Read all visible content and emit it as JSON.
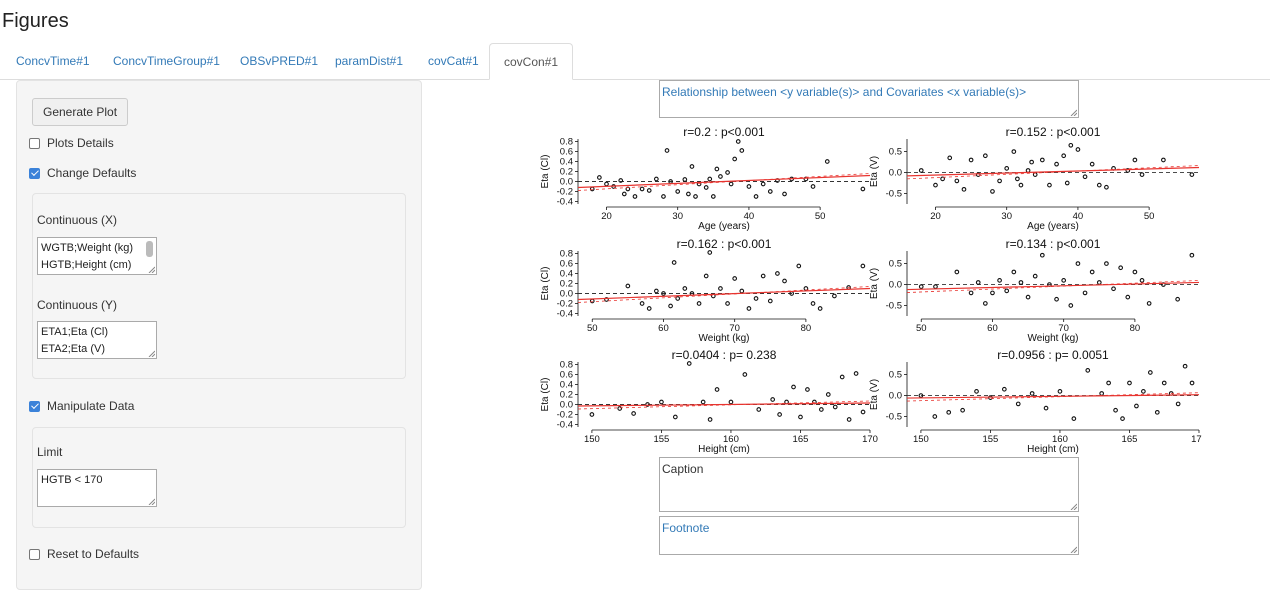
{
  "page": {
    "title": "Figures"
  },
  "tabs": [
    {
      "label": "ConcvTime#1"
    },
    {
      "label": "ConcvTimeGroup#1"
    },
    {
      "label": "OBSvPRED#1"
    },
    {
      "label": "paramDist#1"
    },
    {
      "label": "covCat#1"
    },
    {
      "label": "covCon#1"
    }
  ],
  "active_tab": "covCon#1",
  "sidebar": {
    "generate_label": "Generate Plot",
    "plots_details": {
      "label": "Plots Details",
      "checked": false
    },
    "change_defaults": {
      "label": "Change Defaults",
      "checked": true
    },
    "continuous_x": {
      "label": "Continuous (X)",
      "lines": [
        "WGTB;Weight (kg)",
        "HGTB;Height (cm)"
      ]
    },
    "continuous_y": {
      "label": "Continuous (Y)",
      "lines": [
        "ETA1;Eta (Cl)",
        "ETA2;Eta (V)"
      ]
    },
    "manipulate_data": {
      "label": "Manipulate Data",
      "checked": true
    },
    "limit": {
      "label": "Limit",
      "value": "HGTB < 170"
    },
    "reset_defaults": {
      "label": "Reset to Defaults",
      "checked": false
    }
  },
  "main": {
    "title_text": "Relationship between <y variable(s)> and Covariates <x variable(s)>",
    "caption_text": "Caption",
    "footnote_text": "Footnote"
  },
  "chart_data": {
    "type": "scatter",
    "rows": [
      {
        "covariate": "Age",
        "xlabel": "Age (years)",
        "xlim": [
          16,
          57
        ],
        "xticks": [
          20,
          30,
          40,
          50
        ]
      },
      {
        "covariate": "Weight",
        "xlabel": "Weight (kg)",
        "xlim": [
          48,
          89
        ],
        "xticks": [
          50,
          60,
          70,
          80
        ]
      },
      {
        "covariate": "Height",
        "xlabel": "Height (cm)",
        "xlim": [
          149,
          170
        ],
        "xticks": [
          150,
          155,
          160,
          165,
          170
        ]
      }
    ],
    "columns": [
      {
        "eta": "ETA1",
        "ylabel": "Eta (Cl)",
        "ylim": [
          -0.45,
          0.85
        ],
        "yticks": [
          -0.4,
          -0.2,
          0.0,
          0.2,
          0.4,
          0.6,
          0.8
        ]
      },
      {
        "eta": "ETA2",
        "ylabel": "Eta (V)",
        "ylim": [
          -0.75,
          0.8
        ],
        "yticks": [
          -0.5,
          0.0,
          0.5
        ]
      }
    ],
    "panels": [
      {
        "row": 0,
        "col": 0,
        "title": "r=0.2 : p<0.001",
        "fit": [
          [
            16,
            -0.12
          ],
          [
            57,
            0.12
          ]
        ],
        "points": [
          [
            18,
            -0.15
          ],
          [
            19,
            0.08
          ],
          [
            20,
            -0.05
          ],
          [
            21,
            -0.1
          ],
          [
            22,
            0.02
          ],
          [
            22.5,
            -0.25
          ],
          [
            23,
            -0.15
          ],
          [
            24,
            -0.3
          ],
          [
            25,
            -0.15
          ],
          [
            26,
            -0.18
          ],
          [
            27,
            0.05
          ],
          [
            28,
            -0.3
          ],
          [
            28.5,
            0.62
          ],
          [
            29,
            0.0
          ],
          [
            30,
            -0.2
          ],
          [
            31,
            0.04
          ],
          [
            31.5,
            -0.25
          ],
          [
            32,
            0.3
          ],
          [
            32.5,
            -0.3
          ],
          [
            33,
            -0.05
          ],
          [
            34,
            -0.12
          ],
          [
            34.5,
            0.05
          ],
          [
            35,
            -0.3
          ],
          [
            35.5,
            0.25
          ],
          [
            36,
            0.1
          ],
          [
            37,
            0.18
          ],
          [
            37.5,
            -0.05
          ],
          [
            38,
            0.45
          ],
          [
            38.5,
            0.8
          ],
          [
            39,
            0.62
          ],
          [
            40,
            -0.1
          ],
          [
            41,
            -0.3
          ],
          [
            42,
            -0.05
          ],
          [
            43,
            -0.2
          ],
          [
            44,
            0.02
          ],
          [
            45,
            -0.25
          ],
          [
            46,
            0.05
          ],
          [
            48,
            0.05
          ],
          [
            49,
            -0.1
          ],
          [
            51,
            0.4
          ],
          [
            56,
            -0.15
          ]
        ]
      },
      {
        "row": 0,
        "col": 1,
        "title": "r=0.152 : p<0.001",
        "fit": [
          [
            16,
            -0.08
          ],
          [
            57,
            0.12
          ]
        ],
        "points": [
          [
            18,
            0.05
          ],
          [
            20,
            -0.3
          ],
          [
            21,
            -0.15
          ],
          [
            22,
            0.35
          ],
          [
            23,
            -0.2
          ],
          [
            24,
            -0.4
          ],
          [
            25,
            0.3
          ],
          [
            26,
            -0.05
          ],
          [
            27,
            0.4
          ],
          [
            28,
            -0.45
          ],
          [
            29,
            -0.2
          ],
          [
            30,
            0.1
          ],
          [
            31,
            0.5
          ],
          [
            31.5,
            -0.15
          ],
          [
            32,
            -0.3
          ],
          [
            33,
            0.05
          ],
          [
            33.5,
            0.25
          ],
          [
            34,
            -0.05
          ],
          [
            35,
            0.3
          ],
          [
            36,
            -0.3
          ],
          [
            37,
            0.2
          ],
          [
            38,
            0.4
          ],
          [
            38.5,
            -0.25
          ],
          [
            39,
            0.65
          ],
          [
            40,
            0.55
          ],
          [
            41,
            -0.1
          ],
          [
            42,
            0.2
          ],
          [
            43,
            -0.3
          ],
          [
            44,
            -0.35
          ],
          [
            45,
            0.1
          ],
          [
            47,
            0.05
          ],
          [
            48,
            0.3
          ],
          [
            49,
            -0.05
          ],
          [
            52,
            0.3
          ],
          [
            56,
            -0.05
          ]
        ]
      },
      {
        "row": 1,
        "col": 0,
        "title": "r=0.162 : p<0.001",
        "fit": [
          [
            48,
            -0.12
          ],
          [
            89,
            0.1
          ]
        ],
        "points": [
          [
            50,
            -0.15
          ],
          [
            52,
            -0.12
          ],
          [
            55,
            0.15
          ],
          [
            57,
            -0.2
          ],
          [
            58,
            -0.3
          ],
          [
            59,
            0.05
          ],
          [
            60,
            0.0
          ],
          [
            61,
            -0.25
          ],
          [
            61.5,
            0.62
          ],
          [
            62,
            -0.1
          ],
          [
            63,
            0.1
          ],
          [
            64,
            0.0
          ],
          [
            65,
            -0.2
          ],
          [
            66,
            0.35
          ],
          [
            66.5,
            0.82
          ],
          [
            67,
            -0.05
          ],
          [
            68,
            0.1
          ],
          [
            69,
            -0.2
          ],
          [
            70,
            0.3
          ],
          [
            71,
            0.05
          ],
          [
            72,
            -0.3
          ],
          [
            73,
            -0.1
          ],
          [
            74,
            0.35
          ],
          [
            75,
            -0.15
          ],
          [
            76,
            0.4
          ],
          [
            77,
            0.25
          ],
          [
            78,
            0.0
          ],
          [
            79,
            0.55
          ],
          [
            80,
            0.1
          ],
          [
            81,
            -0.2
          ],
          [
            82,
            -0.3
          ],
          [
            84,
            -0.05
          ],
          [
            86,
            0.12
          ],
          [
            88,
            0.55
          ]
        ]
      },
      {
        "row": 1,
        "col": 1,
        "title": "r=0.134 : p<0.001",
        "fit": [
          [
            48,
            -0.12
          ],
          [
            89,
            0.05
          ]
        ],
        "points": [
          [
            50,
            -0.05
          ],
          [
            52,
            -0.05
          ],
          [
            55,
            0.3
          ],
          [
            57,
            -0.2
          ],
          [
            58,
            0.05
          ],
          [
            59,
            -0.45
          ],
          [
            60,
            -0.2
          ],
          [
            61,
            0.1
          ],
          [
            62,
            -0.15
          ],
          [
            63,
            0.3
          ],
          [
            64,
            0.05
          ],
          [
            65,
            -0.3
          ],
          [
            66,
            0.2
          ],
          [
            67,
            0.7
          ],
          [
            68,
            0.0
          ],
          [
            69,
            -0.35
          ],
          [
            70,
            0.1
          ],
          [
            71,
            -0.5
          ],
          [
            72,
            0.5
          ],
          [
            73,
            -0.2
          ],
          [
            74,
            0.3
          ],
          [
            75,
            0.05
          ],
          [
            76,
            0.5
          ],
          [
            77,
            -0.1
          ],
          [
            78,
            0.4
          ],
          [
            79,
            -0.3
          ],
          [
            80,
            0.3
          ],
          [
            81,
            0.1
          ],
          [
            82,
            -0.45
          ],
          [
            84,
            0.0
          ],
          [
            86,
            -0.35
          ],
          [
            88,
            0.7
          ]
        ]
      },
      {
        "row": 2,
        "col": 0,
        "title": "r=0.0404 : p= 0.238",
        "fit": [
          [
            149,
            -0.03
          ],
          [
            170,
            0.03
          ]
        ],
        "points": [
          [
            150,
            -0.2
          ],
          [
            152,
            -0.08
          ],
          [
            153,
            -0.18
          ],
          [
            154,
            0.0
          ],
          [
            155,
            0.05
          ],
          [
            156,
            -0.25
          ],
          [
            157,
            0.82
          ],
          [
            158,
            0.05
          ],
          [
            158.5,
            -0.3
          ],
          [
            159,
            0.3
          ],
          [
            160,
            0.05
          ],
          [
            161,
            0.6
          ],
          [
            162,
            -0.1
          ],
          [
            163,
            0.1
          ],
          [
            163.5,
            -0.2
          ],
          [
            164,
            0.05
          ],
          [
            164.5,
            0.35
          ],
          [
            165,
            -0.25
          ],
          [
            165.5,
            0.3
          ],
          [
            166,
            0.05
          ],
          [
            166.5,
            -0.1
          ],
          [
            167,
            0.2
          ],
          [
            167.5,
            -0.05
          ],
          [
            168,
            0.55
          ],
          [
            168.5,
            -0.3
          ],
          [
            169,
            0.62
          ],
          [
            169.5,
            -0.15
          ]
        ]
      },
      {
        "row": 2,
        "col": 1,
        "title": "r=0.0956 : p= 0.0051",
        "fit": [
          [
            149,
            -0.06
          ],
          [
            170,
            0.02
          ]
        ],
        "points": [
          [
            150,
            0.0
          ],
          [
            151,
            -0.5
          ],
          [
            152,
            -0.4
          ],
          [
            153,
            -0.35
          ],
          [
            154,
            0.1
          ],
          [
            155,
            -0.05
          ],
          [
            156,
            0.15
          ],
          [
            157,
            -0.2
          ],
          [
            158,
            0.05
          ],
          [
            159,
            -0.3
          ],
          [
            160,
            0.1
          ],
          [
            161,
            -0.55
          ],
          [
            162,
            0.6
          ],
          [
            163,
            0.05
          ],
          [
            163.5,
            0.3
          ],
          [
            164,
            -0.35
          ],
          [
            164.5,
            -0.55
          ],
          [
            165,
            0.3
          ],
          [
            165.5,
            -0.25
          ],
          [
            166,
            0.1
          ],
          [
            166.5,
            0.55
          ],
          [
            167,
            -0.4
          ],
          [
            167.5,
            0.3
          ],
          [
            168,
            0.05
          ],
          [
            168.5,
            -0.2
          ],
          [
            169,
            0.7
          ],
          [
            169.5,
            0.3
          ]
        ]
      }
    ],
    "colors": {
      "fit": "#e8342f",
      "points": "#111111",
      "zero_line": "#333333"
    }
  }
}
